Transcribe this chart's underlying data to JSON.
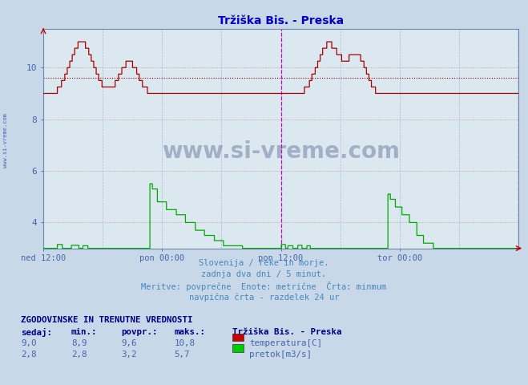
{
  "title": "Tržiška Bis. - Preska",
  "title_color": "#0000cc",
  "bg_color": "#c8d8e8",
  "plot_bg_color": "#dce8f0",
  "ylim_min": 3.0,
  "ylim_max": 11.5,
  "yticks": [
    4,
    6,
    8,
    10
  ],
  "yticklabels": [
    "4",
    "6",
    "8",
    "10"
  ],
  "xtick_labels": [
    "ned 12:00",
    "pon 00:00",
    "pon 12:00",
    "tor 00:00"
  ],
  "xtick_positions": [
    0.0,
    0.25,
    0.5,
    0.75
  ],
  "vline_positions": [
    0.5,
    1.0
  ],
  "hline_avg_temp": 9.6,
  "hline_avg_color": "#880000",
  "subtitle_lines": [
    "Slovenija / reke in morje.",
    "zadnja dva dni / 5 minut.",
    "Meritve: povprečne  Enote: metrične  Črta: minmum",
    "navpična črta - razdelek 24 ur"
  ],
  "subtitle_color": "#4488bb",
  "table_header": "ZGODOVINSKE IN TRENUTNE VREDNOSTI",
  "table_header_color": "#000088",
  "table_cols": [
    "sedaj:",
    "min.:",
    "povpr.:",
    "maks.:"
  ],
  "table_data": [
    [
      "9,0",
      "8,9",
      "9,6",
      "10,8"
    ],
    [
      "2,8",
      "2,8",
      "3,2",
      "5,7"
    ]
  ],
  "legend_title": "Tržiška Bis. - Preska",
  "legend_items": [
    "temperatura[C]",
    "pretok[m3/s]"
  ],
  "legend_colors": [
    "#cc0000",
    "#00cc00"
  ],
  "temp_color": "#aa0000",
  "flow_color": "#00aa00",
  "axis_color": "#6688aa",
  "tick_color": "#4466aa",
  "watermark_text": "www.si-vreme.com",
  "watermark_color": "#1a3060",
  "watermark_alpha": 0.3,
  "ylabel_text": "www.si-vreme.com"
}
